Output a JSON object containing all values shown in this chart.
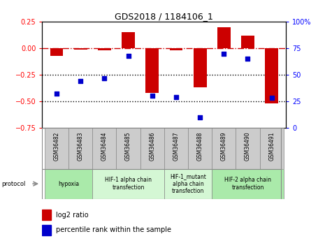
{
  "title": "GDS2018 / 1184106_1",
  "samples": [
    "GSM36482",
    "GSM36483",
    "GSM36484",
    "GSM36485",
    "GSM36486",
    "GSM36487",
    "GSM36488",
    "GSM36489",
    "GSM36490",
    "GSM36491"
  ],
  "log2_ratio": [
    -0.07,
    -0.01,
    -0.02,
    0.15,
    -0.42,
    -0.02,
    -0.37,
    0.2,
    0.12,
    -0.52
  ],
  "percentile_rank": [
    32,
    44,
    47,
    68,
    30,
    29,
    10,
    70,
    65,
    28
  ],
  "ylim_left": [
    -0.75,
    0.25
  ],
  "ylim_right": [
    0,
    100
  ],
  "protocols": [
    {
      "label": "hypoxia",
      "start": 0,
      "end": 2,
      "color": "#aaeaaa"
    },
    {
      "label": "HIF-1 alpha chain\ntransfection",
      "start": 2,
      "end": 5,
      "color": "#d4f7d4"
    },
    {
      "label": "HIF-1_mutant\nalpha chain\ntransfection",
      "start": 5,
      "end": 7,
      "color": "#d4f7d4"
    },
    {
      "label": "HIF-2 alpha chain\ntransfection",
      "start": 7,
      "end": 10,
      "color": "#aaeaaa"
    }
  ],
  "bar_color": "#cc0000",
  "scatter_color": "#0000cc",
  "legend_labels": [
    "log2 ratio",
    "percentile rank within the sample"
  ],
  "bar_width": 0.55
}
